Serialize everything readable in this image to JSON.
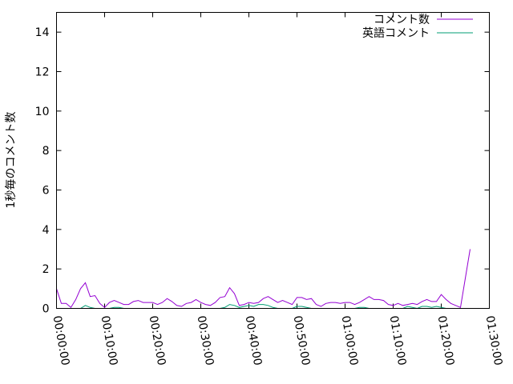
{
  "chart_data": {
    "type": "line",
    "title": "",
    "xlabel": "",
    "ylabel": "1秒毎のコメント数",
    "ylim": [
      0,
      15
    ],
    "xlim": [
      "00:00:00",
      "01:30:00"
    ],
    "yticks": [
      "0",
      "2",
      "4",
      "6",
      "8",
      "10",
      "12",
      "14"
    ],
    "xticks": [
      "00:00:00",
      "00:10:00",
      "00:20:00",
      "00:30:00",
      "00:40:00",
      "00:50:00",
      "01:00:00",
      "01:10:00",
      "01:20:00",
      "01:30:00"
    ],
    "grid": false,
    "legend_position": "top-right",
    "x": [
      "00:00:00",
      "00:01:00",
      "00:02:00",
      "00:03:00",
      "00:04:00",
      "00:05:00",
      "00:06:00",
      "00:07:00",
      "00:08:00",
      "00:09:00",
      "00:10:00",
      "00:11:00",
      "00:12:00",
      "00:13:00",
      "00:14:00",
      "00:15:00",
      "00:16:00",
      "00:17:00",
      "00:18:00",
      "00:19:00",
      "00:20:00",
      "00:21:00",
      "00:22:00",
      "00:23:00",
      "00:24:00",
      "00:25:00",
      "00:26:00",
      "00:27:00",
      "00:28:00",
      "00:29:00",
      "00:30:00",
      "00:31:00",
      "00:32:00",
      "00:33:00",
      "00:34:00",
      "00:35:00",
      "00:36:00",
      "00:37:00",
      "00:38:00",
      "00:39:00",
      "00:40:00",
      "00:41:00",
      "00:42:00",
      "00:43:00",
      "00:44:00",
      "00:45:00",
      "00:46:00",
      "00:47:00",
      "00:48:00",
      "00:49:00",
      "00:50:00",
      "00:51:00",
      "00:52:00",
      "00:53:00",
      "00:54:00",
      "00:55:00",
      "00:56:00",
      "00:57:00",
      "00:58:00",
      "00:59:00",
      "01:00:00",
      "01:01:00",
      "01:02:00",
      "01:03:00",
      "01:04:00",
      "01:05:00",
      "01:06:00",
      "01:07:00",
      "01:08:00",
      "01:09:00",
      "01:10:00",
      "01:11:00",
      "01:12:00",
      "01:13:00",
      "01:14:00",
      "01:15:00",
      "01:16:00",
      "01:17:00",
      "01:18:00",
      "01:19:00",
      "01:20:00",
      "01:21:00",
      "01:22:00",
      "01:23:00",
      "01:24:00",
      "01:26:00"
    ],
    "series": [
      {
        "name": "コメント数",
        "color": "#9400d3",
        "values": [
          1.0,
          0.25,
          0.25,
          0.05,
          0.45,
          1.0,
          1.3,
          0.6,
          0.65,
          0.25,
          0.05,
          0.3,
          0.4,
          0.3,
          0.2,
          0.2,
          0.35,
          0.4,
          0.3,
          0.3,
          0.3,
          0.2,
          0.3,
          0.5,
          0.35,
          0.15,
          0.1,
          0.25,
          0.3,
          0.45,
          0.3,
          0.2,
          0.15,
          0.3,
          0.55,
          0.6,
          1.05,
          0.75,
          0.15,
          0.2,
          0.3,
          0.25,
          0.3,
          0.5,
          0.6,
          0.45,
          0.3,
          0.4,
          0.3,
          0.2,
          0.55,
          0.55,
          0.45,
          0.5,
          0.2,
          0.1,
          0.25,
          0.3,
          0.3,
          0.25,
          0.3,
          0.3,
          0.2,
          0.3,
          0.45,
          0.6,
          0.45,
          0.45,
          0.4,
          0.2,
          0.15,
          0.25,
          0.15,
          0.2,
          0.25,
          0.2,
          0.35,
          0.45,
          0.35,
          0.35,
          0.7,
          0.45,
          0.25,
          0.15,
          0.05,
          3.0
        ]
      },
      {
        "name": "英語コメント",
        "color": "#009e73",
        "values": [
          0,
          0,
          0,
          0,
          0,
          0,
          0.15,
          0.05,
          0,
          0,
          0,
          0,
          0.05,
          0.05,
          0,
          0,
          0,
          0,
          0,
          0,
          0,
          0,
          0,
          0,
          0,
          0,
          0,
          0,
          0,
          0,
          0,
          0,
          0,
          0,
          0,
          0.05,
          0.2,
          0.15,
          0.05,
          0.1,
          0.15,
          0.1,
          0.2,
          0.2,
          0.15,
          0.05,
          0,
          0,
          0,
          0,
          0.1,
          0.1,
          0.05,
          0,
          0,
          0,
          0,
          0,
          0,
          0,
          0,
          0,
          0,
          0.05,
          0.05,
          0,
          0,
          0,
          0,
          0,
          0,
          0,
          0,
          0.1,
          0.05,
          0,
          0.1,
          0.1,
          0.05,
          0.1,
          0.05,
          0,
          0,
          0,
          0,
          0
        ]
      }
    ]
  }
}
